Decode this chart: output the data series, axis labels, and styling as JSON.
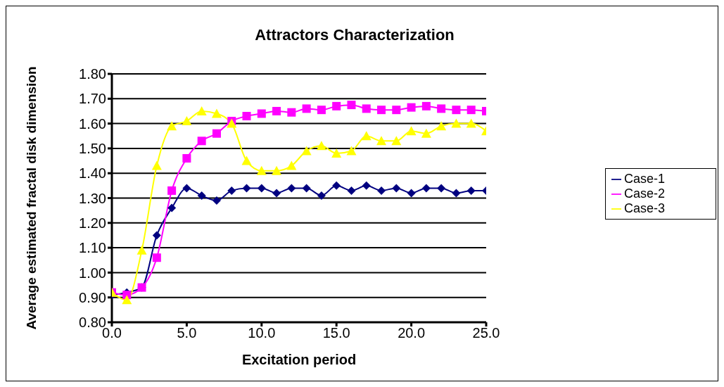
{
  "chart_data": {
    "type": "line",
    "title": "Attractors Characterization",
    "xlabel": "Excitation period",
    "ylabel": "Average estimated fractal disk dimension",
    "x": [
      0,
      1,
      2,
      3,
      4,
      5,
      6,
      7,
      8,
      9,
      10,
      11,
      12,
      13,
      14,
      15,
      16,
      17,
      18,
      19,
      20,
      21,
      22,
      23,
      24,
      25
    ],
    "series": [
      {
        "name": "Case-1",
        "color": "#000080",
        "marker": "diamond",
        "values": [
          0.91,
          0.92,
          0.94,
          1.15,
          1.26,
          1.34,
          1.31,
          1.29,
          1.33,
          1.34,
          1.34,
          1.32,
          1.34,
          1.34,
          1.31,
          1.35,
          1.33,
          1.35,
          1.33,
          1.34,
          1.32,
          1.34,
          1.34,
          1.32,
          1.33,
          1.33
        ]
      },
      {
        "name": "Case-2",
        "color": "#ff00ff",
        "marker": "square",
        "values": [
          0.92,
          0.91,
          0.94,
          1.06,
          1.33,
          1.46,
          1.53,
          1.56,
          1.61,
          1.63,
          1.64,
          1.65,
          1.645,
          1.66,
          1.655,
          1.67,
          1.675,
          1.66,
          1.655,
          1.655,
          1.665,
          1.67,
          1.66,
          1.655,
          1.655,
          1.65
        ]
      },
      {
        "name": "Case-3",
        "color": "#ffff00",
        "marker": "triangle",
        "values": [
          0.92,
          0.89,
          1.09,
          1.43,
          1.59,
          1.61,
          1.65,
          1.64,
          1.6,
          1.45,
          1.41,
          1.41,
          1.43,
          1.49,
          1.51,
          1.48,
          1.49,
          1.55,
          1.53,
          1.53,
          1.57,
          1.56,
          1.59,
          1.6,
          1.6,
          1.57
        ]
      }
    ],
    "xlim": [
      0,
      25
    ],
    "xticks": [
      {
        "value": 0,
        "label": "0.0"
      },
      {
        "value": 5,
        "label": "5.0"
      },
      {
        "value": 10,
        "label": "10.0"
      },
      {
        "value": 15,
        "label": "15.0"
      },
      {
        "value": 20,
        "label": "20.0"
      },
      {
        "value": 25,
        "label": "25.0"
      }
    ],
    "ylim": [
      0.8,
      1.8
    ],
    "yticks": [
      {
        "value": 0.8,
        "label": "0.80"
      },
      {
        "value": 0.9,
        "label": "0.90"
      },
      {
        "value": 1,
        "label": "1.00"
      },
      {
        "value": 1.1,
        "label": "1.10"
      },
      {
        "value": 1.2,
        "label": "1.20"
      },
      {
        "value": 1.3,
        "label": "1.30"
      },
      {
        "value": 1.4,
        "label": "1.40"
      },
      {
        "value": 1.5,
        "label": "1.50"
      },
      {
        "value": 1.6,
        "label": "1.60"
      },
      {
        "value": 1.7,
        "label": "1.70"
      },
      {
        "value": 1.8,
        "label": "1.80"
      }
    ],
    "grid": "y",
    "legend": "right",
    "line_style": "solid"
  }
}
